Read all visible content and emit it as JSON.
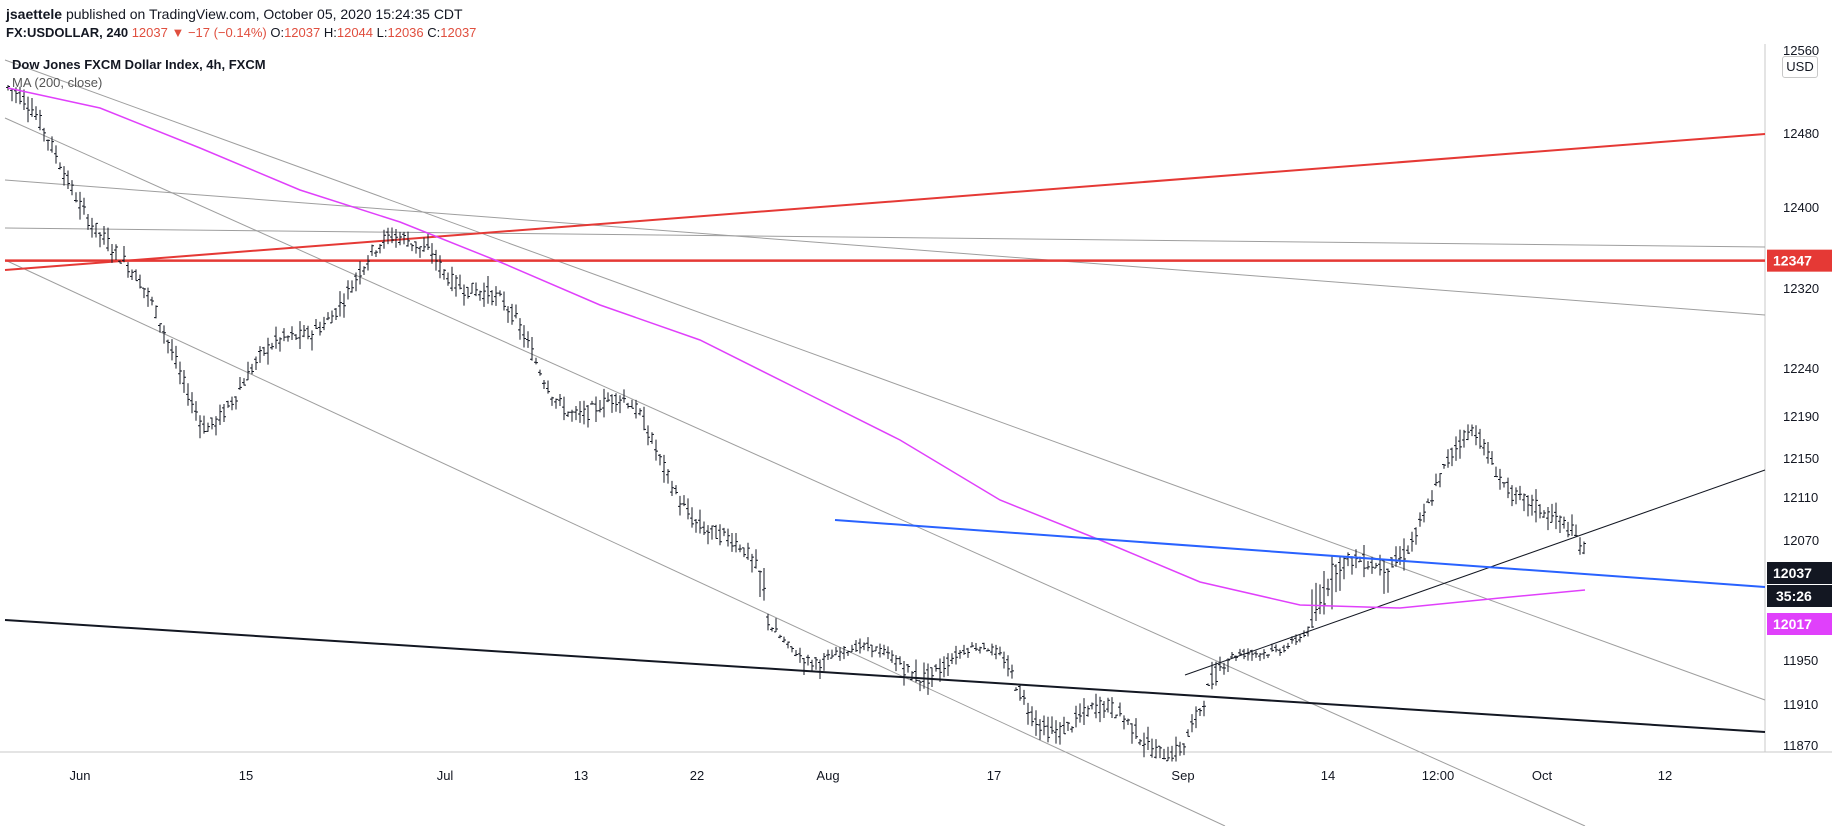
{
  "header": {
    "author": "jsaettele",
    "published": "published on TradingView.com, October 05, 2020 15:24:35 CDT",
    "symbol": "FX:USDOLLAR, 240",
    "change": "12037 ▼ −17 (−0.14%)",
    "o_label": "O:",
    "o_value": "12037",
    "h_label": "H:",
    "h_value": "12044",
    "l_label": "L:",
    "l_value": "12036",
    "c_label": "C:",
    "c_value": "12037"
  },
  "legend": {
    "title": "Dow Jones FXCM Dollar Index, 4h, FXCM",
    "indicator": "MA (200, close)"
  },
  "currency_badge": "USD",
  "colors": {
    "red_line": "#e53935",
    "blue_line": "#2962ff",
    "ma_line": "#e040fb",
    "candles": "#131722",
    "gray_lines": "#9e9e9e",
    "black_line": "#131722"
  },
  "chart_data": {
    "type": "ohlc",
    "title": "Dow Jones FXCM Dollar Index, 4h, FXCM",
    "y_ticks": [
      12560,
      12480,
      12400,
      12320,
      12240,
      12190,
      12150,
      12110,
      12070,
      11950,
      11910,
      11870
    ],
    "x_ticks": [
      "Jun",
      "15",
      "Jul",
      "13",
      "22",
      "Aug",
      "17",
      "Sep",
      "14",
      "12:00",
      "Oct",
      "12"
    ],
    "price_labels": [
      {
        "value": 12347,
        "label": "12347",
        "color": "#e53935"
      },
      {
        "value": 12037,
        "label": "12037",
        "sub": "35:26",
        "color": "#131722"
      },
      {
        "value": 12017,
        "label": "12017",
        "color": "#e040fb"
      }
    ],
    "key_points": [
      {
        "label": "late May start",
        "value": 12515
      },
      {
        "label": "June low",
        "value": 12200
      },
      {
        "label": "late June high",
        "value": 12370
      },
      {
        "label": "early Aug low",
        "value": 11970
      },
      {
        "label": "Sep 1 low",
        "value": 11880
      },
      {
        "label": "late Sep high",
        "value": 12160
      },
      {
        "label": "last",
        "value": 12037
      }
    ],
    "horizontal_levels": [
      {
        "value": 12347,
        "color": "#e53935"
      }
    ],
    "moving_average": {
      "name": "MA (200, close)",
      "last": 12017
    }
  }
}
